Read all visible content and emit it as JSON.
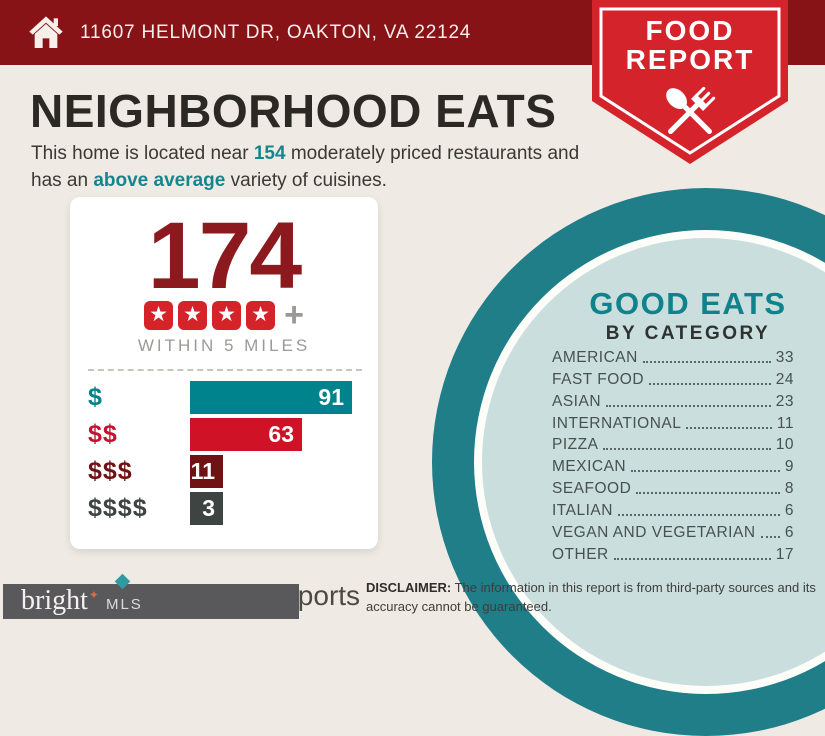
{
  "colors": {
    "header_bg": "#871317",
    "badge_red": "#D4232B",
    "background": "#EFEAE3",
    "total_red": "#8C191D",
    "teal_accent": "#15868D",
    "circle_dark_teal": "#1F7E88",
    "circle_light_teal": "#C9DEDD",
    "star_tile_red": "#D42329"
  },
  "icons": {
    "star_glyph": "★",
    "sparkle_glyph": "✦",
    "home": "home-icon",
    "utensils": "spoon-and-fork-icon"
  },
  "header": {
    "address": "11607 HELMONT DR, OAKTON, VA 22124",
    "badge_line1": "FOOD",
    "badge_line2": "REPORT"
  },
  "page": {
    "title": "NEIGHBORHOOD EATS",
    "intro_segments": [
      {
        "text": "This home is located near ",
        "bold": false
      },
      {
        "text": "154",
        "bold": true
      },
      {
        "text": " moderately priced restaurants and has an ",
        "bold": false
      },
      {
        "text": "above average",
        "bold": true
      },
      {
        "text": " variety of cuisines.",
        "bold": false
      }
    ]
  },
  "summary_card": {
    "total": "174",
    "stars": 4,
    "plus": "+",
    "caption": "WITHIN 5 MILES"
  },
  "good_eats": {
    "title": "GOOD EATS",
    "subtitle": "BY CATEGORY"
  },
  "footer": {
    "disclaimer_label": "DISCLAIMER:",
    "disclaimer_text": " The information in this report is from third-party sources and its accuracy cannot be guaranteed.",
    "logo_text": "bright",
    "logo_suffix": "MLS",
    "reports_text": "Reports"
  },
  "chart_data": [
    {
      "type": "bar",
      "orientation": "horizontal",
      "title": "174 restaurants (4 stars +) within 5 miles, by price level",
      "categories": [
        "$",
        "$$",
        "$$$",
        "$$$$"
      ],
      "values": [
        91,
        63,
        11,
        3
      ],
      "bar_colors": [
        "#00838C",
        "#D01226",
        "#701114",
        "#3D4442"
      ],
      "label_colors": [
        "#00838C",
        "#C41230",
        "#701114",
        "#3D4442"
      ],
      "value_labels_inside_bars": true,
      "xlim": [
        0,
        100
      ],
      "grid": false,
      "legend": false
    },
    {
      "type": "table",
      "title": "GOOD EATS BY CATEGORY",
      "categories": [
        "AMERICAN",
        "FAST FOOD",
        "ASIAN",
        "INTERNATIONAL",
        "PIZZA",
        "MEXICAN",
        "SEAFOOD",
        "ITALIAN",
        "VEGAN AND VEGETARIAN",
        "OTHER"
      ],
      "values": [
        33,
        24,
        23,
        11,
        10,
        9,
        8,
        6,
        6,
        17
      ]
    }
  ]
}
